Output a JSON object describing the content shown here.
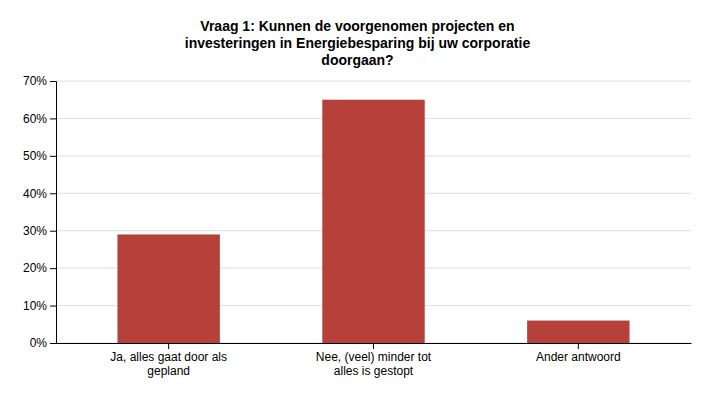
{
  "chart_data": {
    "type": "bar",
    "title": "Vraag 1: Kunnen de voorgenomen projecten en\ninvesteringen in Energiebesparing bij uw corporatie\ndoorgaan?",
    "categories": [
      "Ja, alles gaat door als\ngepland",
      "Nee, (veel) minder tot\nalles is gestopt",
      "Ander antwoord"
    ],
    "values": [
      0.29,
      0.65,
      0.06
    ],
    "color": "#b5413a",
    "ylim": [
      0,
      0.7
    ],
    "yticks": [
      {
        "value": 0.0,
        "label": "0%"
      },
      {
        "value": 0.1,
        "label": "10%"
      },
      {
        "value": 0.2,
        "label": "20%"
      },
      {
        "value": 0.3,
        "label": "30%"
      },
      {
        "value": 0.4,
        "label": "40%"
      },
      {
        "value": 0.5,
        "label": "50%"
      },
      {
        "value": 0.6,
        "label": "60%"
      },
      {
        "value": 0.7,
        "label": "70%"
      }
    ],
    "grid": true
  }
}
